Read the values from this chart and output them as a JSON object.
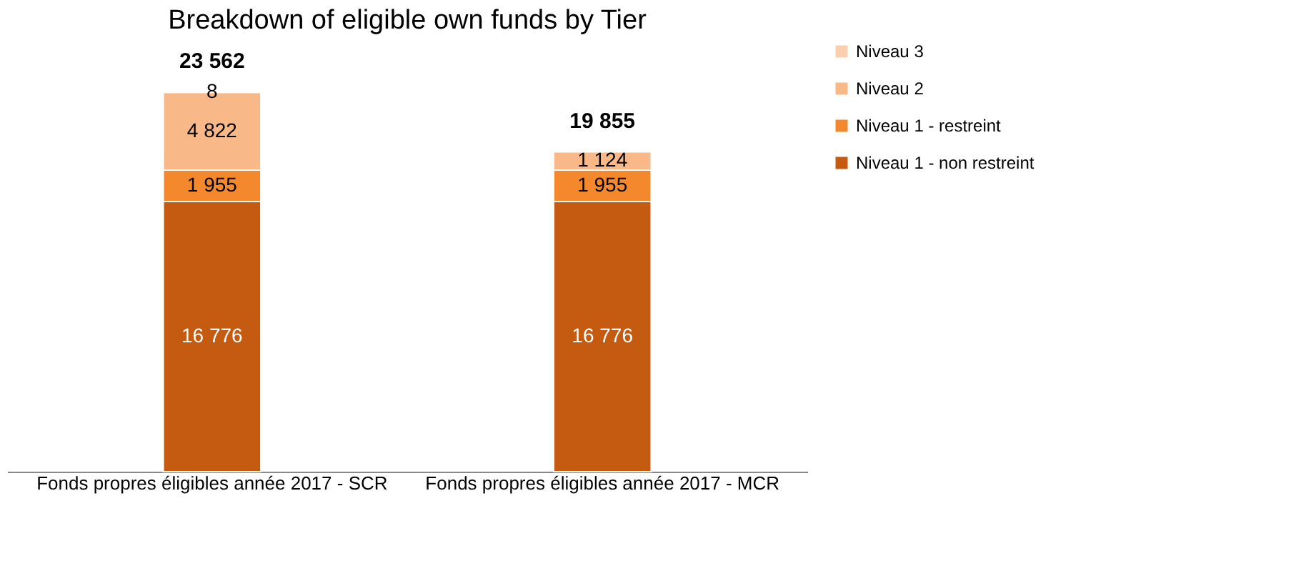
{
  "chart_data": {
    "type": "bar",
    "title": "Breakdown of eligible own funds by Tier",
    "categories": [
      "Fonds propres éligibles année 2017 - SCR",
      "Fonds propres éligibles année 2017 - MCR"
    ],
    "stacked": true,
    "series": [
      {
        "name": "Niveau 1 - non restreint",
        "color": "#c55a11",
        "values": [
          16776,
          16776
        ],
        "value_labels": [
          "16 776",
          "16 776"
        ]
      },
      {
        "name": "Niveau 1 - restreint",
        "color": "#f4882c",
        "values": [
          1955,
          1955
        ],
        "value_labels": [
          "1 955",
          "1 955"
        ]
      },
      {
        "name": "Niveau 2",
        "color": "#f8b887",
        "values": [
          4822,
          1124
        ],
        "value_labels": [
          "4 822",
          "1 124"
        ]
      },
      {
        "name": "Niveau 3",
        "color": "#fbcfae",
        "values": [
          8,
          null
        ],
        "value_labels": [
          "8",
          null
        ]
      }
    ],
    "totals": [
      "23 562",
      "19 855"
    ],
    "legend": "right",
    "grid": false
  }
}
